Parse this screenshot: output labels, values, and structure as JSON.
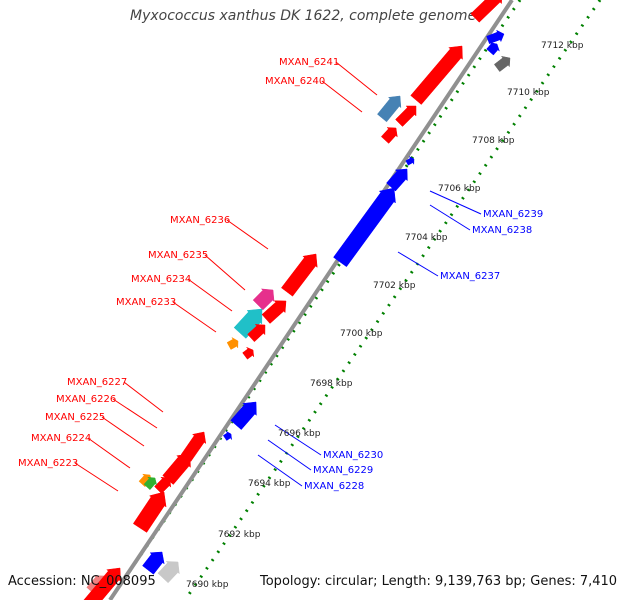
{
  "title": "Myxococcus xanthus DK 1622, complete genome",
  "accession_label": "Accession: NC_008095",
  "summary_label": "Topology: circular; Length: 9,139,763 bp; Genes: 7,410",
  "colors": {
    "backbone": "#909090",
    "forward_gene": "#ff0000",
    "reverse_gene": "#0000ff",
    "tick_dots": "#008000",
    "label_red": "#ff0000",
    "label_blue": "#0000ff"
  },
  "ticks": [
    "7690 kbp",
    "7692 kbp",
    "7694 kbp",
    "7696 kbp",
    "7698 kbp",
    "7700 kbp",
    "7702 kbp",
    "7704 kbp",
    "7706 kbp",
    "7708 kbp",
    "7710 kbp",
    "7712 kbp"
  ],
  "gene_labels_red": [
    "MXAN_6241",
    "MXAN_6240",
    "MXAN_6236",
    "MXAN_6235",
    "MXAN_6234",
    "MXAN_6233",
    "MXAN_6227",
    "MXAN_6226",
    "MXAN_6225",
    "MXAN_6224",
    "MXAN_6223"
  ],
  "gene_labels_blue": [
    "MXAN_6239",
    "MXAN_6238",
    "MXAN_6237",
    "MXAN_6230",
    "MXAN_6229",
    "MXAN_6228"
  ]
}
